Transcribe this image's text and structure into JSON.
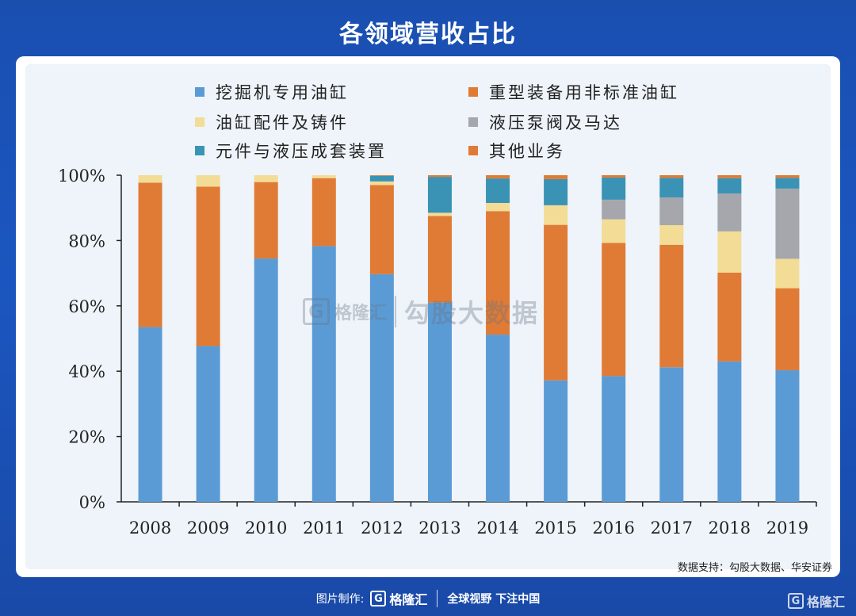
{
  "page_title": "各领域营收占比",
  "source_note": "数据支持：勾股大数据、华安证券",
  "watermark": {
    "logo_glyph": "G",
    "brand": "格隆汇",
    "tag": "勾股大数据"
  },
  "footer": {
    "made_by": "图片制作:",
    "logo_glyph": "G",
    "brand": "格隆汇",
    "slogan": "全球视野 下注中国"
  },
  "corner_logo": {
    "glyph": "G",
    "brand": "格隆汇"
  },
  "colors": {
    "background": "#1b56c0",
    "panel": "#eef4fa"
  },
  "chart_data": {
    "type": "bar",
    "stacked": true,
    "categories": [
      "2008",
      "2009",
      "2010",
      "2011",
      "2012",
      "2013",
      "2014",
      "2015",
      "2016",
      "2017",
      "2018",
      "2019"
    ],
    "ylim": [
      0,
      100
    ],
    "yticks": [
      "0%",
      "20%",
      "40%",
      "60%",
      "80%",
      "100%"
    ],
    "legend_position": "top",
    "grid": false,
    "series": [
      {
        "name": "挖掘机专用油缸",
        "color": "#5b9bd5",
        "values": [
          53.5,
          47.7,
          74.5,
          78.3,
          69.7,
          61.0,
          51.2,
          37.2,
          38.5,
          41.2,
          43.0,
          40.3
        ]
      },
      {
        "name": "重型装备用非标准油缸",
        "color": "#e07b35",
        "values": [
          44.2,
          48.8,
          23.4,
          20.8,
          27.3,
          26.5,
          37.8,
          47.6,
          40.8,
          37.5,
          27.2,
          25.1
        ]
      },
      {
        "name": "油缸配件及铸件",
        "color": "#f3dc96",
        "values": [
          2.3,
          3.5,
          2.1,
          0.9,
          1.1,
          1.0,
          2.5,
          6.0,
          7.2,
          6.0,
          12.6,
          9.0
        ]
      },
      {
        "name": "液压泵阀及马达",
        "color": "#a5a7ac",
        "values": [
          0,
          0,
          0,
          0,
          0,
          0,
          0,
          0,
          6.0,
          8.5,
          11.6,
          21.5
        ]
      },
      {
        "name": "元件与液压成套装置",
        "color": "#3a93b4",
        "values": [
          0,
          0,
          0,
          0,
          1.7,
          11.0,
          7.5,
          8.0,
          6.8,
          6.0,
          4.7,
          3.3
        ]
      },
      {
        "name": "其他业务",
        "color": "#e07b35",
        "values": [
          0,
          0,
          0,
          0,
          0.2,
          0.5,
          1.0,
          1.2,
          0.7,
          0.8,
          0.9,
          0.8
        ]
      }
    ]
  }
}
